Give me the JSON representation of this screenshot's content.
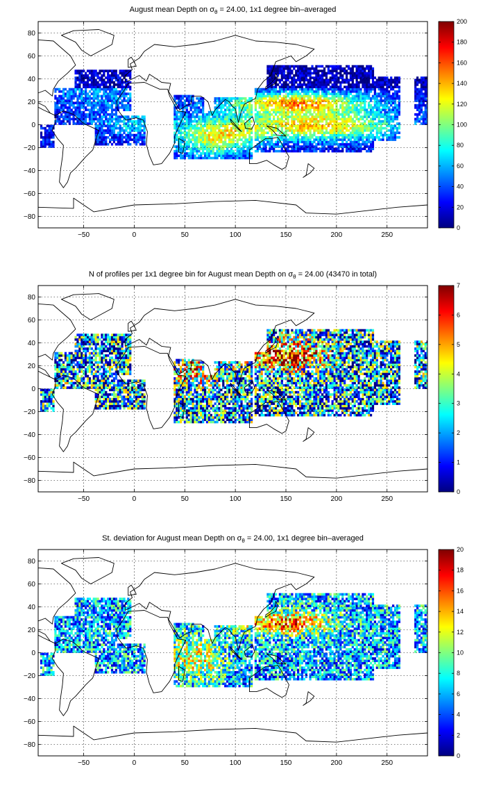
{
  "chart_data": [
    {
      "type": "heatmap",
      "title": {
        "pre": "August mean Depth on ",
        "sym": "σ",
        "sub": "θ",
        "post": " = 24.00, 1x1 degree bin–averaged"
      },
      "field": "mean",
      "xlim": [
        -95,
        290
      ],
      "ylim": [
        -90,
        90
      ],
      "x_ticks": [
        -50,
        0,
        50,
        100,
        150,
        200,
        250
      ],
      "y_ticks": [
        -80,
        -60,
        -40,
        -20,
        0,
        20,
        40,
        60,
        80
      ],
      "grid": true,
      "colorbar": {
        "min": 0,
        "max": 200,
        "ticks": [
          0,
          20,
          40,
          60,
          80,
          100,
          120,
          140,
          160,
          180,
          200
        ],
        "colormap": "jet"
      }
    },
    {
      "type": "heatmap",
      "title": {
        "pre": "N of profiles per 1x1 degree bin for August mean Depth on ",
        "sym": "σ",
        "sub": "θ",
        "post": " = 24.00 (43470 in total)"
      },
      "field": "count",
      "total_profiles": 43470,
      "xlim": [
        -95,
        290
      ],
      "ylim": [
        -90,
        90
      ],
      "x_ticks": [
        -50,
        0,
        50,
        100,
        150,
        200,
        250
      ],
      "y_ticks": [
        -80,
        -60,
        -40,
        -20,
        0,
        20,
        40,
        60,
        80
      ],
      "grid": true,
      "colorbar": {
        "min": 0,
        "max": 7,
        "ticks": [
          0,
          1,
          2,
          3,
          4,
          5,
          6,
          7
        ],
        "colormap": "jet"
      }
    },
    {
      "type": "heatmap",
      "title": {
        "pre": "St. deviation for August mean Depth on ",
        "sym": "σ",
        "sub": "θ",
        "post": " = 24.00, 1x1 degree bin–averaged"
      },
      "field": "std",
      "xlim": [
        -95,
        290
      ],
      "ylim": [
        -90,
        90
      ],
      "x_ticks": [
        -50,
        0,
        50,
        100,
        150,
        200,
        250
      ],
      "y_ticks": [
        -80,
        -60,
        -40,
        -20,
        0,
        20,
        40,
        60,
        80
      ],
      "grid": true,
      "colorbar": {
        "min": 0,
        "max": 20,
        "ticks": [
          0,
          2,
          4,
          6,
          8,
          10,
          12,
          14,
          16,
          18,
          20
        ],
        "colormap": "jet"
      }
    }
  ]
}
